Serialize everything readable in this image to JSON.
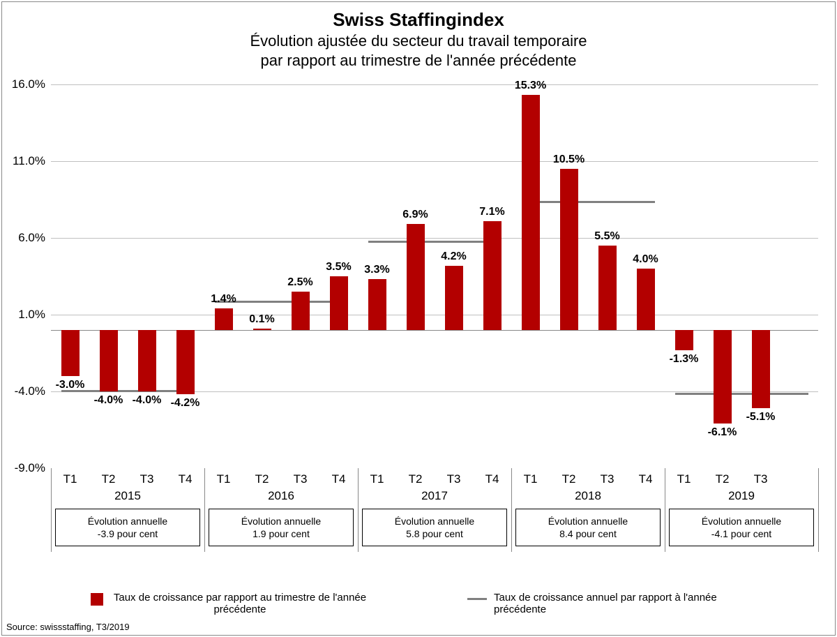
{
  "title": "Swiss Staffingindex",
  "subtitle_line1": "Évolution ajustée du secteur du travail temporaire",
  "subtitle_line2": "par rapport au trimestre de l'année précédente",
  "source": "Source: swissstaffing, T3/2019",
  "legend": {
    "bars": "Taux de croissance par rapport au trimestre de l'année précédente",
    "line": "Taux de croissance annuel par rapport à l'année précédente"
  },
  "chart": {
    "type": "bar",
    "ylim": [
      -9.0,
      16.0
    ],
    "yticks": [
      -9.0,
      -4.0,
      1.0,
      6.0,
      11.0,
      16.0
    ],
    "ytick_labels": [
      "-9.0%",
      "-4.0%",
      "1.0%",
      "6.0%",
      "11.0%",
      "16.0%"
    ],
    "bar_color": "#b30000",
    "avg_line_color": "#808080",
    "grid_color": "#bfbfbf",
    "background_color": "#ffffff",
    "label_fontsize": 16,
    "tick_fontsize": 17,
    "years": [
      {
        "year": "2015",
        "annual_label": "Évolution annuelle",
        "annual_value_text": "-3.9 pour cent",
        "annual_value": -3.9,
        "quarters": [
          {
            "q": "T1",
            "value": -3.0,
            "label": "-3.0%"
          },
          {
            "q": "T2",
            "value": -4.0,
            "label": "-4.0%"
          },
          {
            "q": "T3",
            "value": -4.0,
            "label": "-4.0%"
          },
          {
            "q": "T4",
            "value": -4.2,
            "label": "-4.2%"
          }
        ]
      },
      {
        "year": "2016",
        "annual_label": "Évolution annuelle",
        "annual_value_text": "1.9 pour cent",
        "annual_value": 1.9,
        "quarters": [
          {
            "q": "T1",
            "value": 1.4,
            "label": "1.4%"
          },
          {
            "q": "T2",
            "value": 0.1,
            "label": "0.1%"
          },
          {
            "q": "T3",
            "value": 2.5,
            "label": "2.5%"
          },
          {
            "q": "T4",
            "value": 3.5,
            "label": "3.5%"
          }
        ]
      },
      {
        "year": "2017",
        "annual_label": "Évolution annuelle",
        "annual_value_text": "5.8 pour cent",
        "annual_value": 5.8,
        "quarters": [
          {
            "q": "T1",
            "value": 3.3,
            "label": "3.3%"
          },
          {
            "q": "T2",
            "value": 6.9,
            "label": "6.9%"
          },
          {
            "q": "T3",
            "value": 4.2,
            "label": "4.2%"
          },
          {
            "q": "T4",
            "value": 7.1,
            "label": "7.1%"
          }
        ]
      },
      {
        "year": "2018",
        "annual_label": "Évolution annuelle",
        "annual_value_text": "8.4 pour cent",
        "annual_value": 8.4,
        "quarters": [
          {
            "q": "T1",
            "value": 15.3,
            "label": "15.3%"
          },
          {
            "q": "T2",
            "value": 10.5,
            "label": "10.5%"
          },
          {
            "q": "T3",
            "value": 5.5,
            "label": "5.5%"
          },
          {
            "q": "T4",
            "value": 4.0,
            "label": "4.0%"
          }
        ]
      },
      {
        "year": "2019",
        "annual_label": "Évolution annuelle",
        "annual_value_text": "-4.1 pour cent",
        "annual_value": -4.1,
        "quarters": [
          {
            "q": "T1",
            "value": -1.3,
            "label": "-1.3%"
          },
          {
            "q": "T2",
            "value": -6.1,
            "label": "-6.1%"
          },
          {
            "q": "T3",
            "value": -5.1,
            "label": "-5.1%"
          }
        ]
      }
    ]
  }
}
